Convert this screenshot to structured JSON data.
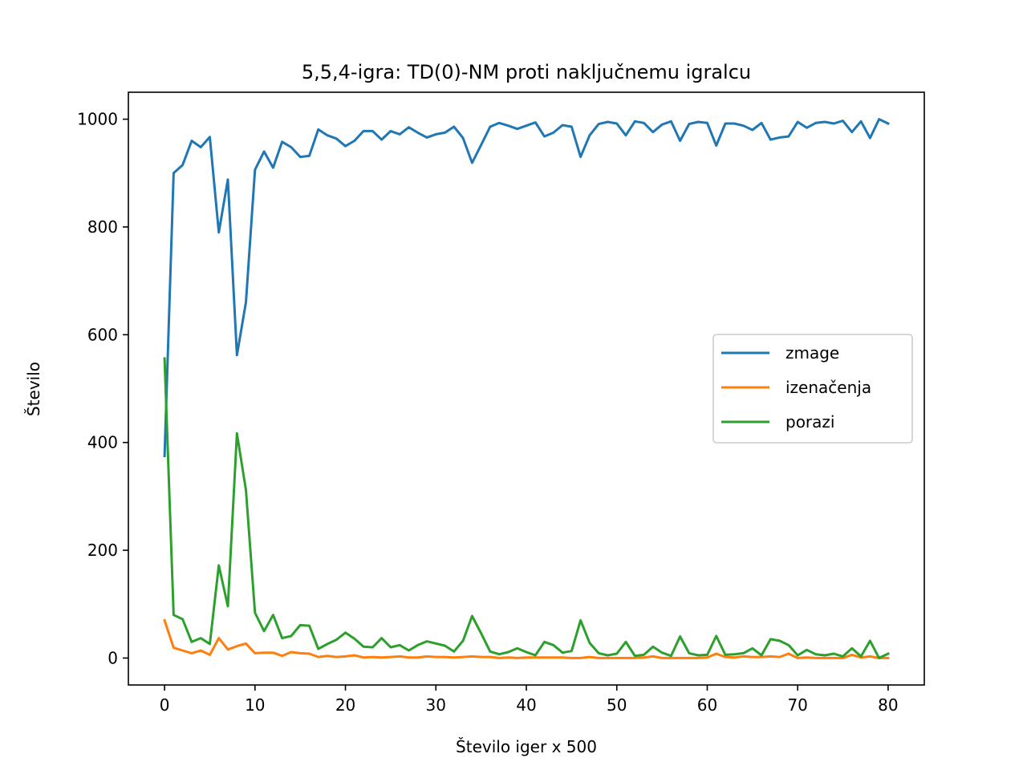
{
  "chart_data": {
    "type": "line",
    "title": "5,5,4-igra: TD(0)-NM proti naključnemu igralcu",
    "xlabel": "Število iger x 500",
    "ylabel": "Število",
    "xlim": [
      -4,
      84
    ],
    "ylim": [
      -50,
      1050
    ],
    "xticks": [
      0,
      10,
      20,
      30,
      40,
      50,
      60,
      70,
      80
    ],
    "yticks": [
      0,
      200,
      400,
      600,
      800,
      1000
    ],
    "grid": false,
    "legend_position": "center-right",
    "x": [
      0,
      1,
      2,
      3,
      4,
      5,
      6,
      7,
      8,
      9,
      10,
      11,
      12,
      13,
      14,
      15,
      16,
      17,
      18,
      19,
      20,
      21,
      22,
      23,
      24,
      25,
      26,
      27,
      28,
      29,
      30,
      31,
      32,
      33,
      34,
      35,
      36,
      37,
      38,
      39,
      40,
      41,
      42,
      43,
      44,
      45,
      46,
      47,
      48,
      49,
      50,
      51,
      52,
      53,
      54,
      55,
      56,
      57,
      58,
      59,
      60,
      61,
      62,
      63,
      64,
      65,
      66,
      67,
      68,
      69,
      70,
      71,
      72,
      73,
      74,
      75,
      76,
      77,
      78,
      79,
      80
    ],
    "series": [
      {
        "name": "zmage",
        "color": "#1f77b4",
        "values": [
          375,
          900,
          915,
          960,
          948,
          967,
          790,
          888,
          562,
          660,
          906,
          940,
          910,
          958,
          948,
          930,
          932,
          981,
          970,
          964,
          950,
          960,
          978,
          978,
          962,
          978,
          972,
          985,
          975,
          966,
          972,
          975,
          986,
          965,
          919,
          952,
          986,
          993,
          988,
          982,
          988,
          994,
          968,
          975,
          989,
          986,
          930,
          970,
          991,
          995,
          992,
          970,
          996,
          993,
          976,
          990,
          996,
          960,
          991,
          995,
          993,
          951,
          992,
          992,
          988,
          980,
          993,
          962,
          966,
          968,
          995,
          984,
          993,
          995,
          992,
          997,
          976,
          996,
          965,
          1000,
          992
        ]
      },
      {
        "name": "izenačenja",
        "color": "#ff7f0e",
        "values": [
          70,
          19,
          14,
          9,
          14,
          6,
          37,
          16,
          22,
          27,
          9,
          10,
          10,
          4,
          11,
          9,
          8,
          2,
          4,
          2,
          3,
          5,
          1,
          2,
          1,
          2,
          3,
          1,
          1,
          3,
          2,
          2,
          1,
          2,
          3,
          2,
          2,
          0,
          1,
          0,
          1,
          1,
          1,
          1,
          1,
          0,
          0,
          2,
          0,
          0,
          0,
          0,
          0,
          1,
          3,
          0,
          0,
          0,
          0,
          0,
          1,
          8,
          2,
          1,
          3,
          2,
          2,
          3,
          2,
          8,
          0,
          1,
          0,
          0,
          0,
          0,
          6,
          1,
          3,
          0,
          0
        ]
      },
      {
        "name": "porazi",
        "color": "#2ca02c",
        "values": [
          556,
          80,
          72,
          30,
          37,
          26,
          172,
          96,
          417,
          312,
          84,
          50,
          80,
          37,
          41,
          61,
          60,
          17,
          26,
          34,
          47,
          36,
          21,
          20,
          37,
          20,
          24,
          14,
          24,
          31,
          27,
          23,
          12,
          32,
          78,
          46,
          12,
          7,
          11,
          18,
          11,
          5,
          30,
          24,
          10,
          13,
          70,
          28,
          9,
          5,
          8,
          30,
          4,
          6,
          21,
          10,
          4,
          40,
          9,
          5,
          6,
          41,
          6,
          7,
          9,
          18,
          5,
          35,
          32,
          24,
          5,
          15,
          7,
          5,
          8,
          3,
          18,
          3,
          32,
          0,
          8
        ]
      }
    ]
  }
}
